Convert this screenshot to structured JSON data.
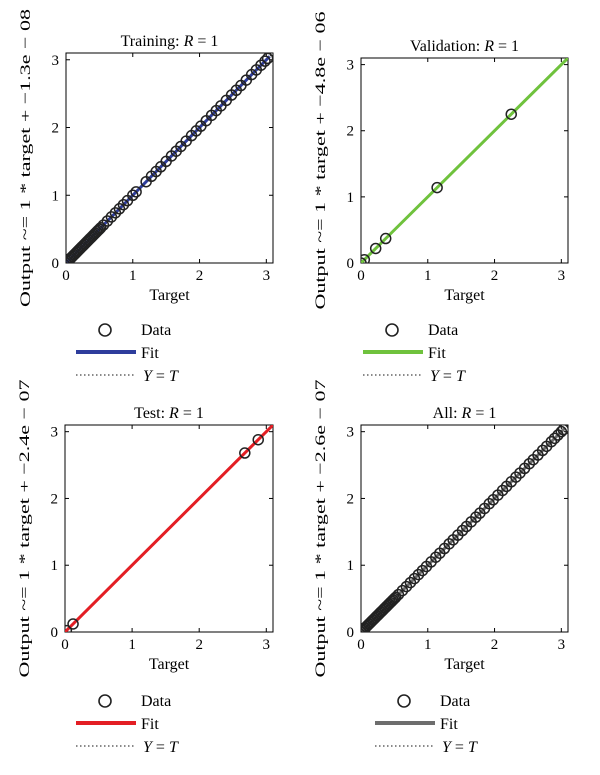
{
  "chart_data": [
    {
      "type": "scatter",
      "title_prefix": "Training: ",
      "title_var": "R",
      "title_suffix": " = 1",
      "xlabel": "Target",
      "ylabel": "Output ~= 1 * target + −1.3e − 08",
      "xlim": [
        0,
        3.1
      ],
      "ylim": [
        0,
        3.1
      ],
      "xticks": [
        0,
        1,
        2,
        3
      ],
      "yticks": [
        0,
        1,
        2,
        3
      ],
      "fit_color": "#2e3d9c",
      "fit_line": [
        [
          0,
          0
        ],
        [
          3.05,
          3.05
        ]
      ],
      "points": [
        0,
        0.02,
        0.04,
        0.06,
        0.08,
        0.1,
        0.12,
        0.14,
        0.16,
        0.18,
        0.2,
        0.22,
        0.24,
        0.26,
        0.28,
        0.3,
        0.32,
        0.34,
        0.36,
        0.38,
        0.4,
        0.42,
        0.44,
        0.46,
        0.48,
        0.5,
        0.52,
        0.56,
        0.62,
        0.68,
        0.74,
        0.8,
        0.86,
        0.92,
        1.0,
        1.05,
        1.2,
        1.28,
        1.35,
        1.42,
        1.5,
        1.58,
        1.65,
        1.72,
        1.8,
        1.88,
        1.95,
        2.02,
        2.1,
        2.18,
        2.25,
        2.32,
        2.4,
        2.48,
        2.55,
        2.62,
        2.7,
        2.78,
        2.85,
        2.92,
        2.98,
        3.02
      ],
      "legend": {
        "data": "Data",
        "fit": "Fit",
        "yt_var_a": "Y",
        "yt_eq": " = ",
        "yt_var_b": "T"
      }
    },
    {
      "type": "scatter",
      "title_prefix": "Validation: ",
      "title_var": "R",
      "title_suffix": " = 1",
      "xlabel": "Target",
      "ylabel": "Output ~= 1 * target + −4.8e − 06",
      "xlim": [
        0,
        3.1
      ],
      "ylim": [
        0,
        3.1
      ],
      "xticks": [
        0,
        1,
        2,
        3
      ],
      "yticks": [
        0,
        1,
        2,
        3
      ],
      "fit_color": "#6fc23d",
      "fit_line": [
        [
          0,
          0
        ],
        [
          3.1,
          3.1
        ]
      ],
      "points": [
        0.0,
        0.05,
        0.22,
        0.37,
        1.14,
        2.25
      ],
      "legend": {
        "data": "Data",
        "fit": "Fit",
        "yt_var_a": "Y",
        "yt_eq": " = ",
        "yt_var_b": "T"
      }
    },
    {
      "type": "scatter",
      "title_prefix": "Test: ",
      "title_var": "R",
      "title_suffix": " = 1",
      "xlabel": "Target",
      "ylabel": "Output ~= 1 * target + −2.4e − 07",
      "xlim": [
        0,
        3.1
      ],
      "ylim": [
        0,
        3.1
      ],
      "xticks": [
        0,
        1,
        2,
        3
      ],
      "yticks": [
        0,
        1,
        2,
        3
      ],
      "fit_color": "#e31e24",
      "fit_line": [
        [
          0,
          0
        ],
        [
          3.1,
          3.1
        ]
      ],
      "points": [
        0.02,
        0.12,
        2.68,
        2.88
      ],
      "legend": {
        "data": "Data",
        "fit": "Fit",
        "yt_var_a": "Y",
        "yt_eq": " = ",
        "yt_var_b": "T"
      }
    },
    {
      "type": "scatter",
      "title_prefix": "All: ",
      "title_var": "R",
      "title_suffix": " = 1",
      "xlabel": "Target",
      "ylabel": "Output ~= 1 * target + −2.6e − 07",
      "xlim": [
        0,
        3.1
      ],
      "ylim": [
        0,
        3.1
      ],
      "xticks": [
        0,
        1,
        2,
        3
      ],
      "yticks": [
        0,
        1,
        2,
        3
      ],
      "fit_color": "#6d6d6d",
      "fit_line": [
        [
          0,
          0
        ],
        [
          3.05,
          3.05
        ]
      ],
      "points": [
        0,
        0.02,
        0.04,
        0.06,
        0.08,
        0.1,
        0.12,
        0.14,
        0.16,
        0.18,
        0.2,
        0.22,
        0.24,
        0.26,
        0.28,
        0.3,
        0.32,
        0.34,
        0.36,
        0.38,
        0.4,
        0.42,
        0.44,
        0.46,
        0.48,
        0.5,
        0.52,
        0.56,
        0.62,
        0.68,
        0.74,
        0.8,
        0.86,
        0.92,
        0.98,
        1.05,
        1.12,
        1.18,
        1.25,
        1.32,
        1.38,
        1.45,
        1.52,
        1.58,
        1.65,
        1.72,
        1.78,
        1.85,
        1.92,
        1.98,
        2.05,
        2.12,
        2.18,
        2.25,
        2.32,
        2.38,
        2.45,
        2.52,
        2.58,
        2.65,
        2.72,
        2.78,
        2.85,
        2.9,
        2.95,
        3.0,
        3.03
      ],
      "legend": {
        "data": "Data",
        "fit": "Fit",
        "yt_var_a": "Y",
        "yt_eq": " = ",
        "yt_var_b": "T"
      }
    }
  ]
}
